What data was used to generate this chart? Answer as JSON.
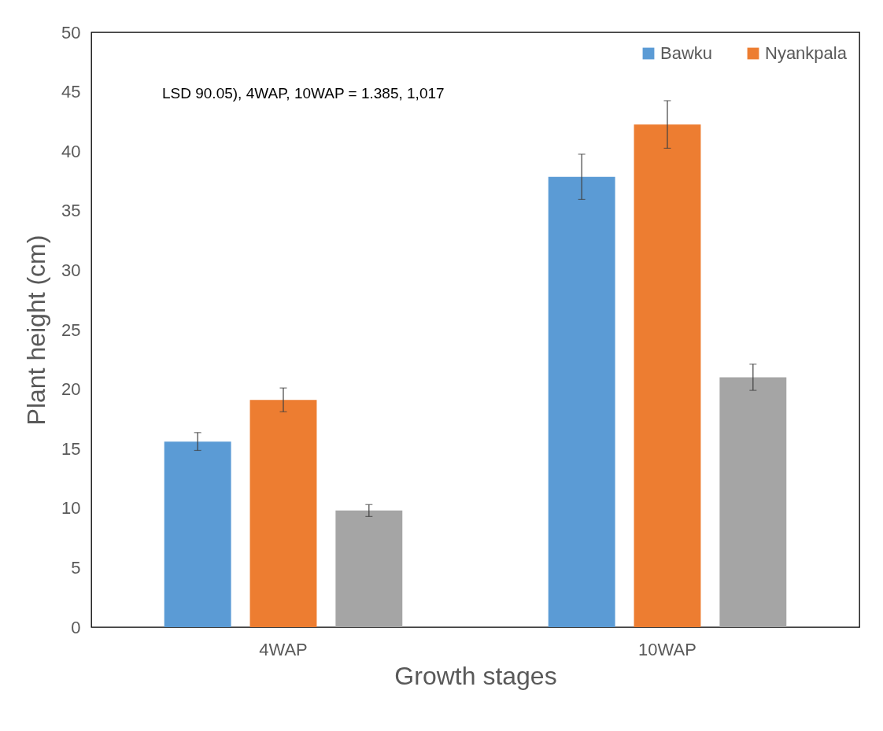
{
  "chart_data": {
    "type": "bar",
    "xlabel": "Growth stages",
    "ylabel": "Plant height  (cm)",
    "categories": [
      "4WAP",
      "10WAP"
    ],
    "series": [
      {
        "name": "Bawku",
        "color": "#5b9bd5",
        "values": [
          15.6,
          37.85
        ],
        "errors": [
          0.75,
          1.9
        ]
      },
      {
        "name": "Nyankpala",
        "color": "#ed7d31",
        "values": [
          19.1,
          42.25
        ],
        "errors": [
          1.0,
          2.0
        ]
      },
      {
        "color": "#a5a5a5",
        "values": [
          9.8,
          21.0
        ],
        "errors": [
          0.5,
          1.1
        ]
      }
    ],
    "ylim": [
      0,
      50
    ],
    "yticks": [
      0,
      5,
      10,
      15,
      20,
      25,
      30,
      35,
      40,
      45,
      50
    ],
    "grid": false,
    "legend": "top right",
    "annotations": [
      "LSD 90.05), 4WAP, 10WAP = 1.385, 1,017"
    ]
  }
}
